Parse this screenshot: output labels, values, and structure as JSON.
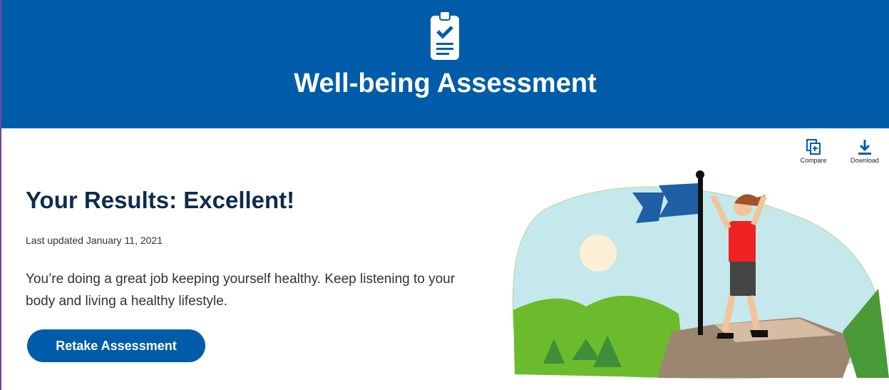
{
  "header": {
    "title": "Well-being Assessment"
  },
  "toolbar": {
    "compare": "Compare",
    "download": "Download"
  },
  "results": {
    "heading": "Your Results: Excellent!",
    "updated": "Last updated January 11, 2021",
    "message": "You’re doing a great job keeping yourself healthy. Keep listening to your body and living a healthy lifestyle.",
    "button": "Retake Assessment"
  }
}
